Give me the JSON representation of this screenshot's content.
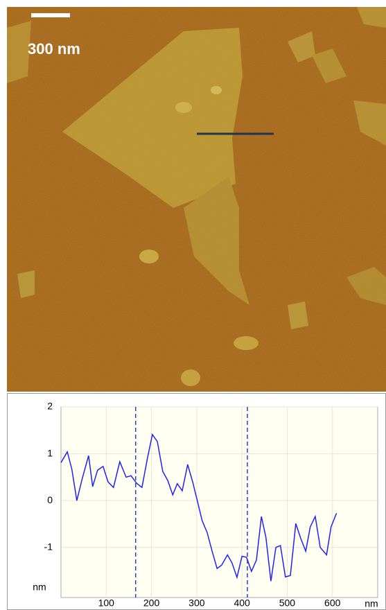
{
  "image": {
    "scale_bar_label": "300 nm"
  },
  "chart_data": {
    "type": "line",
    "x": [
      0,
      14,
      24,
      35,
      47,
      61,
      70,
      81,
      93,
      104,
      116,
      130,
      144,
      155,
      167,
      179,
      191,
      202,
      213,
      225,
      236,
      247,
      257,
      268,
      280,
      291,
      302,
      312,
      323,
      334,
      345,
      355,
      368,
      378,
      389,
      400,
      410,
      421,
      432,
      443,
      453,
      464,
      475,
      485,
      496,
      507,
      519,
      530,
      541,
      551,
      562,
      573,
      587,
      597,
      609
    ],
    "series": [
      {
        "color": "#1f1fff",
        "values": [
          0.81,
          1.04,
          0.67,
          0.0,
          0.47,
          0.96,
          0.3,
          0.65,
          0.73,
          0.4,
          0.28,
          0.83,
          0.5,
          0.53,
          0.37,
          0.28,
          0.9,
          1.41,
          1.26,
          0.62,
          0.43,
          0.12,
          0.36,
          0.21,
          0.77,
          0.4,
          -0.03,
          -0.43,
          -0.68,
          -1.08,
          -1.45,
          -1.38,
          -1.16,
          -1.33,
          -1.64,
          -1.19,
          -1.21,
          -1.51,
          -1.27,
          -0.34,
          -0.79,
          -1.72,
          -1.0,
          -0.96,
          -1.63,
          -1.6,
          -0.49,
          -0.81,
          -1.08,
          -0.56,
          -0.34,
          -1.0,
          -1.16,
          -0.56,
          -0.27
        ]
      }
    ],
    "cursors": [
      165,
      412
    ],
    "cursor_color": "#2a3be0",
    "xlim": [
      0,
      700
    ],
    "ylim": [
      -2.07,
      2
    ],
    "xticks": [
      100,
      200,
      300,
      400,
      500,
      600
    ],
    "yticks": [
      -1,
      0,
      1,
      2
    ],
    "xlabel": "nm",
    "ylabel": "nm",
    "grid": true
  }
}
